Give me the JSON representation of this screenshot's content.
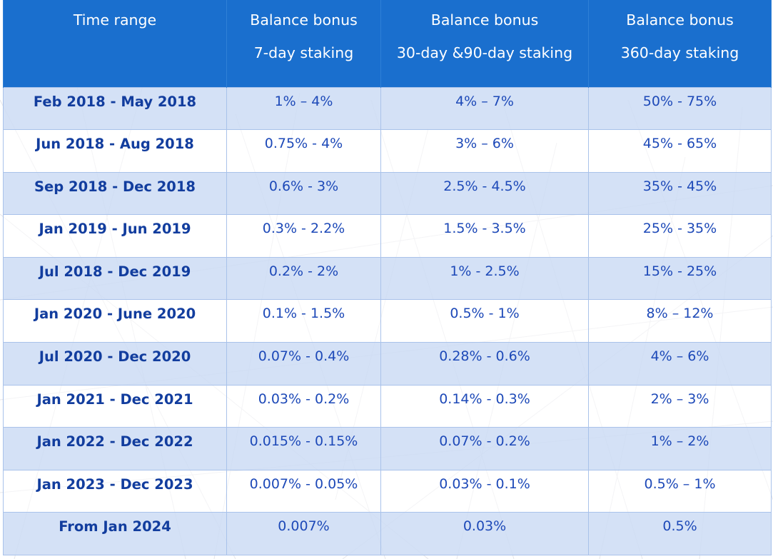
{
  "header": {
    "col1_line1": "Time range",
    "col2_line1": "Balance bonus",
    "col3_line1": "Balance bonus",
    "col4_line1": "Balance bonus",
    "col2_line2": "7-day staking",
    "col3_line2": "30-day &90-day staking",
    "col4_line2": "360-day staking"
  },
  "rows": [
    [
      "Feb 2018 - May 2018",
      "1% – 4%",
      "4% – 7%",
      "50% - 75%"
    ],
    [
      "Jun 2018 - Aug 2018",
      "0.75% - 4%",
      "3% – 6%",
      "45% - 65%"
    ],
    [
      "Sep 2018 - Dec 2018",
      "0.6% - 3%",
      "2.5% - 4.5%",
      "35% - 45%"
    ],
    [
      "Jan 2019 - Jun 2019",
      "0.3% - 2.2%",
      "1.5% - 3.5%",
      "25% - 35%"
    ],
    [
      "Jul 2018 - Dec 2019",
      "0.2% - 2%",
      "1% - 2.5%",
      "15% - 25%"
    ],
    [
      "Jan 2020 - June 2020",
      "0.1% - 1.5%",
      "0.5% - 1%",
      "8% – 12%"
    ],
    [
      "Jul 2020 - Dec 2020",
      "0.07% - 0.4%",
      "0.28% - 0.6%",
      "4% – 6%"
    ],
    [
      "Jan 2021 - Dec 2021",
      "0.03% - 0.2%",
      "0.14% - 0.3%",
      "2% – 3%"
    ],
    [
      "Jan 2022 - Dec 2022",
      "0.015% - 0.15%",
      "0.07% - 0.2%",
      "1% – 2%"
    ],
    [
      "Jan 2023 - Dec 2023",
      "0.007% - 0.05%",
      "0.03% - 0.1%",
      "0.5% – 1%"
    ],
    [
      "From Jan 2024",
      "0.007%",
      "0.03%",
      "0.5%"
    ]
  ],
  "colors": {
    "header_bg": "#1a6fce",
    "row_shade": "#ccdcf4",
    "text_blue": "#1d49b8"
  }
}
